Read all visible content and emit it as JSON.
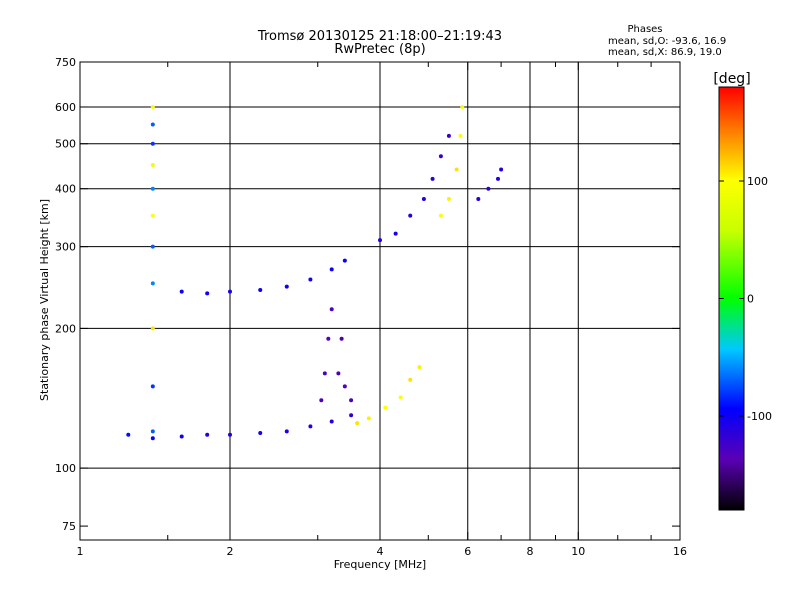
{
  "chart_data": {
    "type": "scatter",
    "title": "Tromsø 20130125 21:18:00–21:19:43",
    "subtitle": "RwPretec (8p)",
    "xlabel": "Frequency [MHz]",
    "ylabel": "Stationary phase Virtual Height [km]",
    "x_scale": "log",
    "y_scale": "log",
    "xlim": [
      1,
      16
    ],
    "ylim": [
      70,
      750
    ],
    "x_ticks": [
      1,
      2,
      4,
      6,
      8,
      10,
      16
    ],
    "x_tick_labels": [
      "1",
      "2",
      "4",
      "6",
      "8",
      "10",
      "16"
    ],
    "x_minor_ticks": [
      1.5,
      3,
      5,
      7,
      9,
      12,
      14
    ],
    "y_ticks": [
      75,
      100,
      200,
      300,
      400,
      500,
      600,
      750
    ],
    "y_tick_labels": [
      "75",
      "100",
      "200",
      "300",
      "400",
      "500",
      "600",
      "750"
    ],
    "grid_x": [
      2,
      4,
      6,
      8,
      10
    ],
    "grid_y": [
      100,
      200,
      300,
      400,
      500,
      600
    ],
    "grid": true,
    "phase_stats": {
      "header": "Phases",
      "line_o": "mean, sd,O:  -93.6, 16.9",
      "line_x": "mean, sd,X:  86.9, 19.0"
    },
    "colorbar": {
      "label": "[deg]",
      "range": [
        -180,
        180
      ],
      "ticks": [
        100,
        0,
        -100
      ],
      "tick_labels": [
        "100",
        "0",
        "-100"
      ],
      "colormap": "rainbow"
    },
    "series": [
      {
        "description": "vertical trace near 1.4 MHz",
        "points": [
          [
            1.4,
            120,
            -70
          ],
          [
            1.4,
            150,
            -80
          ],
          [
            1.4,
            200,
            110
          ],
          [
            1.4,
            250,
            -60
          ],
          [
            1.4,
            300,
            -70
          ],
          [
            1.4,
            350,
            100
          ],
          [
            1.4,
            400,
            -60
          ],
          [
            1.4,
            450,
            90
          ],
          [
            1.4,
            500,
            -80
          ],
          [
            1.4,
            550,
            -70
          ],
          [
            1.4,
            600,
            100
          ]
        ]
      },
      {
        "description": "O-mode F1 layer trace",
        "points": [
          [
            1.6,
            240,
            -100
          ],
          [
            1.8,
            238,
            -100
          ],
          [
            2.0,
            240,
            -105
          ],
          [
            2.3,
            242,
            -100
          ],
          [
            2.6,
            246,
            -100
          ],
          [
            2.9,
            255,
            -105
          ],
          [
            3.2,
            268,
            -100
          ],
          [
            3.4,
            280,
            -95
          ]
        ]
      },
      {
        "description": "O-mode E/F lower trace",
        "points": [
          [
            1.25,
            118,
            -90
          ],
          [
            1.4,
            116,
            -100
          ],
          [
            1.6,
            117,
            -100
          ],
          [
            1.8,
            118,
            -110
          ],
          [
            2.0,
            118,
            -110
          ],
          [
            2.3,
            119,
            -105
          ],
          [
            2.6,
            120,
            -105
          ],
          [
            2.9,
            123,
            -110
          ],
          [
            3.2,
            126,
            -110
          ],
          [
            3.5,
            130,
            -115
          ]
        ]
      },
      {
        "description": "O-mode steep rise near 3.1 to 3.5 MHz",
        "points": [
          [
            3.05,
            140,
            -130
          ],
          [
            3.1,
            160,
            -130
          ],
          [
            3.15,
            190,
            -135
          ],
          [
            3.2,
            220,
            -130
          ],
          [
            3.3,
            160,
            -140
          ],
          [
            3.35,
            190,
            -140
          ],
          [
            3.4,
            150,
            -135
          ],
          [
            3.5,
            140,
            -140
          ]
        ]
      },
      {
        "description": "X-mode yellow trace",
        "points": [
          [
            3.6,
            125,
            110
          ],
          [
            3.8,
            128,
            105
          ],
          [
            4.1,
            135,
            100
          ],
          [
            4.4,
            142,
            100
          ],
          [
            4.6,
            155,
            110
          ],
          [
            4.8,
            165,
            105
          ]
        ]
      },
      {
        "description": "O-mode F2 layer trace",
        "points": [
          [
            4.0,
            310,
            -110
          ],
          [
            4.3,
            320,
            -105
          ],
          [
            4.6,
            350,
            -110
          ],
          [
            4.9,
            380,
            -110
          ],
          [
            5.1,
            420,
            -115
          ],
          [
            5.3,
            470,
            -120
          ],
          [
            5.5,
            520,
            -120
          ]
        ]
      },
      {
        "description": "X-mode F2 layer trace",
        "points": [
          [
            5.3,
            350,
            100
          ],
          [
            5.5,
            380,
            105
          ],
          [
            5.7,
            440,
            110
          ],
          [
            5.8,
            520,
            100
          ],
          [
            5.85,
            600,
            95
          ]
        ]
      },
      {
        "description": "O-mode F2 upper trace",
        "points": [
          [
            6.3,
            380,
            -110
          ],
          [
            6.6,
            400,
            -115
          ],
          [
            6.9,
            420,
            -110
          ],
          [
            7.0,
            440,
            -110
          ]
        ]
      }
    ]
  }
}
